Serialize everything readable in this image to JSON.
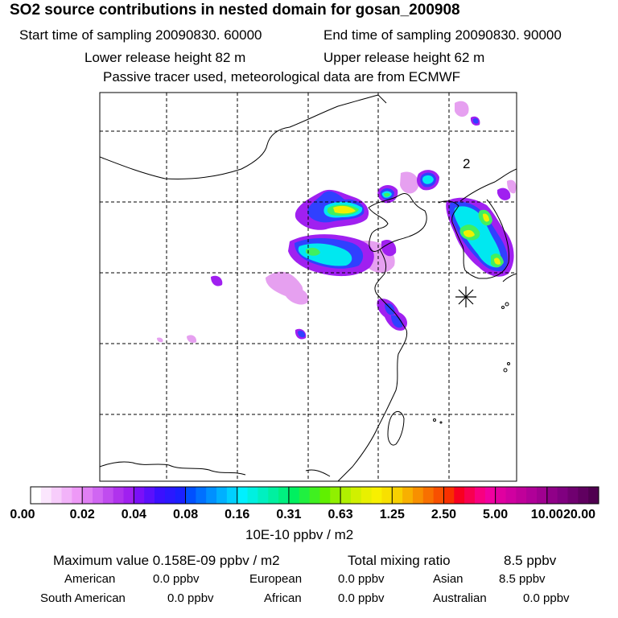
{
  "header": {
    "title": "SO2 source contributions in nested domain for gosan_200908",
    "start_time": "Start time of sampling 20090830. 60000",
    "end_time": "End time of sampling 20090830. 90000",
    "lower_release": "Lower release height   82 m",
    "upper_release": "Upper release height   62 m",
    "tracer_note": "Passive tracer used, meteorological data are from ECMWF"
  },
  "map": {
    "marker_label": "2",
    "receptor": "gosan",
    "plume_colors": {
      "light": "#e6a0f0",
      "purple": "#a020f0",
      "blue": "#3040ff",
      "cyan": "#00e8f0",
      "green": "#40f060",
      "yellow": "#f0f000"
    }
  },
  "colorbar": {
    "ticks": [
      "0.00",
      "0.02",
      "0.04",
      "0.08",
      "0.16",
      "0.31",
      "0.63",
      "1.25",
      "2.50",
      "5.00",
      "10.00",
      "20.00"
    ],
    "colors": [
      [
        "#ffffff",
        "#fbe6fd",
        "#f7cdfb",
        "#f2b3f9",
        "#ee99f7"
      ],
      [
        "#e07ff4",
        "#d066f2",
        "#c04cef",
        "#b033ed",
        "#a020f0"
      ],
      [
        "#7a10f8",
        "#5a10fc",
        "#3a10ff",
        "#2a18ff",
        "#1a20ff"
      ],
      [
        "#0050ff",
        "#0070ff",
        "#0090ff",
        "#00b0ff",
        "#00d0ff"
      ],
      [
        "#00f0ff",
        "#00f0e0",
        "#00f0c0",
        "#00f0a0",
        "#00f080"
      ],
      [
        "#00f060",
        "#20f040",
        "#40f020",
        "#60f000",
        "#90f000"
      ],
      [
        "#b0f000",
        "#d0f000",
        "#e8f000",
        "#f8f000",
        "#f8e000"
      ],
      [
        "#f8d000",
        "#f8b000",
        "#f89000",
        "#f87000",
        "#f85000"
      ],
      [
        "#f83000",
        "#f80020",
        "#f80050",
        "#f80080",
        "#f000a0"
      ],
      [
        "#e000a0",
        "#d000a0",
        "#c0009a",
        "#b00098",
        "#a00090"
      ],
      [
        "#900088",
        "#800080",
        "#700070",
        "#600060",
        "#500050"
      ]
    ],
    "units": "10E-10 ppbv / m2"
  },
  "summary": {
    "max_label": "Maximum value  0.158E-09 ppbv / m2",
    "total_label": "Total mixing ratio",
    "total_value": "8.5 ppbv",
    "regions": [
      {
        "name": "American",
        "value": "0.0 ppbv"
      },
      {
        "name": "European",
        "value": "0.0 ppbv"
      },
      {
        "name": "Asian",
        "value": "8.5 ppbv"
      },
      {
        "name": "South American",
        "value": "0.0 ppbv"
      },
      {
        "name": "African",
        "value": "0.0 ppbv"
      },
      {
        "name": "Australian",
        "value": "0.0 ppbv"
      }
    ]
  }
}
